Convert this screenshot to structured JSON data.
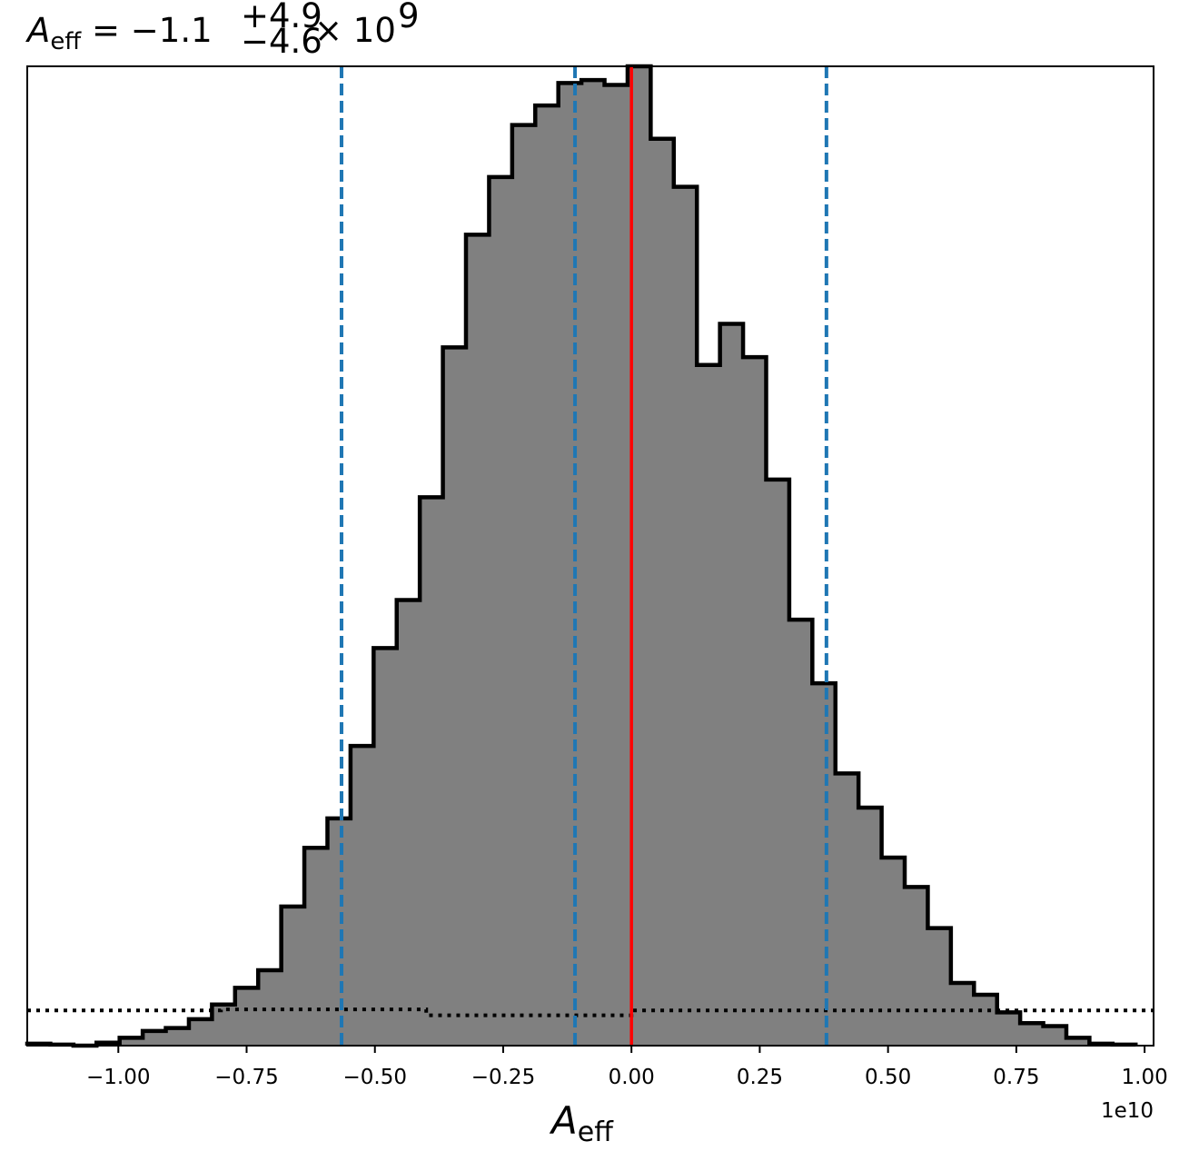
{
  "chart_data": {
    "type": "histogram",
    "title": {
      "symbol": "A",
      "subscript": "eff",
      "equals": "=",
      "value": "−1.1",
      "upper": "+4.9",
      "lower": "−4.6",
      "times": "×",
      "base": "10",
      "exponent": "9"
    },
    "xlabel": {
      "symbol": "A",
      "subscript": "eff"
    },
    "x_offset_text": "1e10",
    "xlim": [
      -1.1775,
      1.0175
    ],
    "ylim": [
      0,
      1.0
    ],
    "x_ticks": [
      -1.0,
      -0.75,
      -0.5,
      -0.25,
      0.0,
      0.25,
      0.5,
      0.75,
      1.0
    ],
    "x_tick_labels": [
      "−1.00",
      "−0.75",
      "−0.50",
      "−0.25",
      "0.00",
      "0.25",
      "0.50",
      "0.75",
      "1.00"
    ],
    "y_ticks_visible": false,
    "bin_edges": [
      -1.1775,
      -1.1325,
      -1.0875,
      -1.0425,
      -0.9975,
      -0.9525,
      -0.9075,
      -0.8625,
      -0.8175,
      -0.7725,
      -0.7275,
      -0.6825,
      -0.6375,
      -0.5925,
      -0.5475,
      -0.5025,
      -0.4575,
      -0.4125,
      -0.3675,
      -0.3225,
      -0.2775,
      -0.2325,
      -0.1875,
      -0.1425,
      -0.0975,
      -0.0525,
      -0.0075,
      0.0375,
      0.0825,
      0.1275,
      0.1725,
      0.2175,
      0.2625,
      0.3075,
      0.3525,
      0.3975,
      0.4425,
      0.4875,
      0.5325,
      0.5775,
      0.6225,
      0.6675,
      0.7125,
      0.7575,
      0.8025,
      0.8475,
      0.8925,
      0.9375,
      0.9825
    ],
    "counts": [
      0.002,
      0.001,
      0.0,
      0.003,
      0.008,
      0.015,
      0.018,
      0.027,
      0.042,
      0.059,
      0.077,
      0.142,
      0.202,
      0.232,
      0.306,
      0.406,
      0.455,
      0.56,
      0.713,
      0.828,
      0.887,
      0.94,
      0.96,
      0.983,
      0.986,
      0.981,
      1.0,
      0.926,
      0.877,
      0.695,
      0.737,
      0.703,
      0.578,
      0.435,
      0.37,
      0.278,
      0.243,
      0.192,
      0.162,
      0.12,
      0.064,
      0.052,
      0.034,
      0.023,
      0.02,
      0.008,
      0.002,
      0.001
    ],
    "hist_fill": "#808080",
    "hist_edge": "#000000",
    "quantile_lines": [
      -0.565,
      -0.11,
      0.38
    ],
    "quantile_color": "#1f77b4",
    "truth_line": 0.0,
    "truth_color": "#ff0000",
    "prior_steps": [
      {
        "x0": -1.1775,
        "x1": -0.8,
        "y": 0.036
      },
      {
        "x0": -0.8,
        "x1": -0.4,
        "y": 0.037
      },
      {
        "x0": -0.4,
        "x1": 0.0,
        "y": 0.031
      },
      {
        "x0": 0.0,
        "x1": 1.0175,
        "y": 0.036
      }
    ],
    "prior_style": "dotted black"
  }
}
